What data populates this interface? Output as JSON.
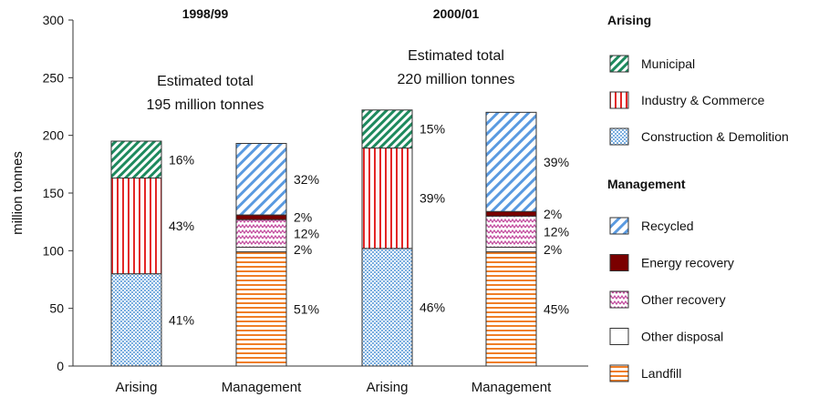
{
  "chart_data": {
    "type": "bar",
    "stacked": true,
    "ylabel": "million tonnes",
    "ylim": [
      0,
      300
    ],
    "yticks": [
      0,
      50,
      100,
      150,
      200,
      250,
      300
    ],
    "groups": [
      {
        "period": "1998/99",
        "total_label": [
          "Estimated total",
          "195 million tonnes"
        ],
        "bars": [
          {
            "category": "Arising",
            "segments": [
              {
                "series": "Construction & Demolition",
                "value": 80,
                "label": "41%"
              },
              {
                "series": "Industry & Commerce",
                "value": 83,
                "label": "43%"
              },
              {
                "series": "Municipal",
                "value": 32,
                "label": "16%"
              }
            ]
          },
          {
            "category": "Management",
            "segments": [
              {
                "series": "Landfill",
                "value": 99,
                "label": "51%"
              },
              {
                "series": "Other disposal",
                "value": 4,
                "label": "2%"
              },
              {
                "series": "Other recovery",
                "value": 24,
                "label": "12%"
              },
              {
                "series": "Energy recovery",
                "value": 4,
                "label": "2%"
              },
              {
                "series": "Recycled",
                "value": 62,
                "label": "32%"
              }
            ]
          }
        ]
      },
      {
        "period": "2000/01",
        "total_label": [
          "Estimated total",
          "220 million tonnes"
        ],
        "bars": [
          {
            "category": "Arising",
            "segments": [
              {
                "series": "Construction & Demolition",
                "value": 102,
                "label": "46%"
              },
              {
                "series": "Industry & Commerce",
                "value": 87,
                "label": "39%"
              },
              {
                "series": "Municipal",
                "value": 33,
                "label": "15%"
              }
            ]
          },
          {
            "category": "Management",
            "segments": [
              {
                "series": "Landfill",
                "value": 99,
                "label": "45%"
              },
              {
                "series": "Other disposal",
                "value": 4,
                "label": "2%"
              },
              {
                "series": "Other recovery",
                "value": 27,
                "label": "12%"
              },
              {
                "series": "Energy recovery",
                "value": 4,
                "label": "2%"
              },
              {
                "series": "Recycled",
                "value": 86,
                "label": "39%"
              }
            ]
          }
        ]
      }
    ],
    "legend": {
      "placement": "right",
      "sections": [
        {
          "title": "Arising",
          "items": [
            "Municipal",
            "Industry & Commerce",
            "Construction & Demolition"
          ]
        },
        {
          "title": "Management",
          "items": [
            "Recycled",
            "Energy recovery",
            "Other recovery",
            "Other disposal",
            "Landfill"
          ]
        }
      ]
    },
    "series_styles": {
      "Municipal": {
        "pattern": "diagonal-hatch",
        "color": "#1e8a5e"
      },
      "Industry & Commerce": {
        "pattern": "vertical-lines",
        "color": "#e32626"
      },
      "Construction & Demolition": {
        "pattern": "dots",
        "color": "#7aaee0"
      },
      "Recycled": {
        "pattern": "diagonal-stripes",
        "color": "#5a9ae0"
      },
      "Energy recovery": {
        "pattern": "solid",
        "color": "#7a0000"
      },
      "Other recovery": {
        "pattern": "zigzag",
        "color": "#c24a9e"
      },
      "Other disposal": {
        "pattern": "solid",
        "color": "#ffffff"
      },
      "Landfill": {
        "pattern": "horizontal-lines",
        "color": "#f07e26"
      }
    }
  }
}
